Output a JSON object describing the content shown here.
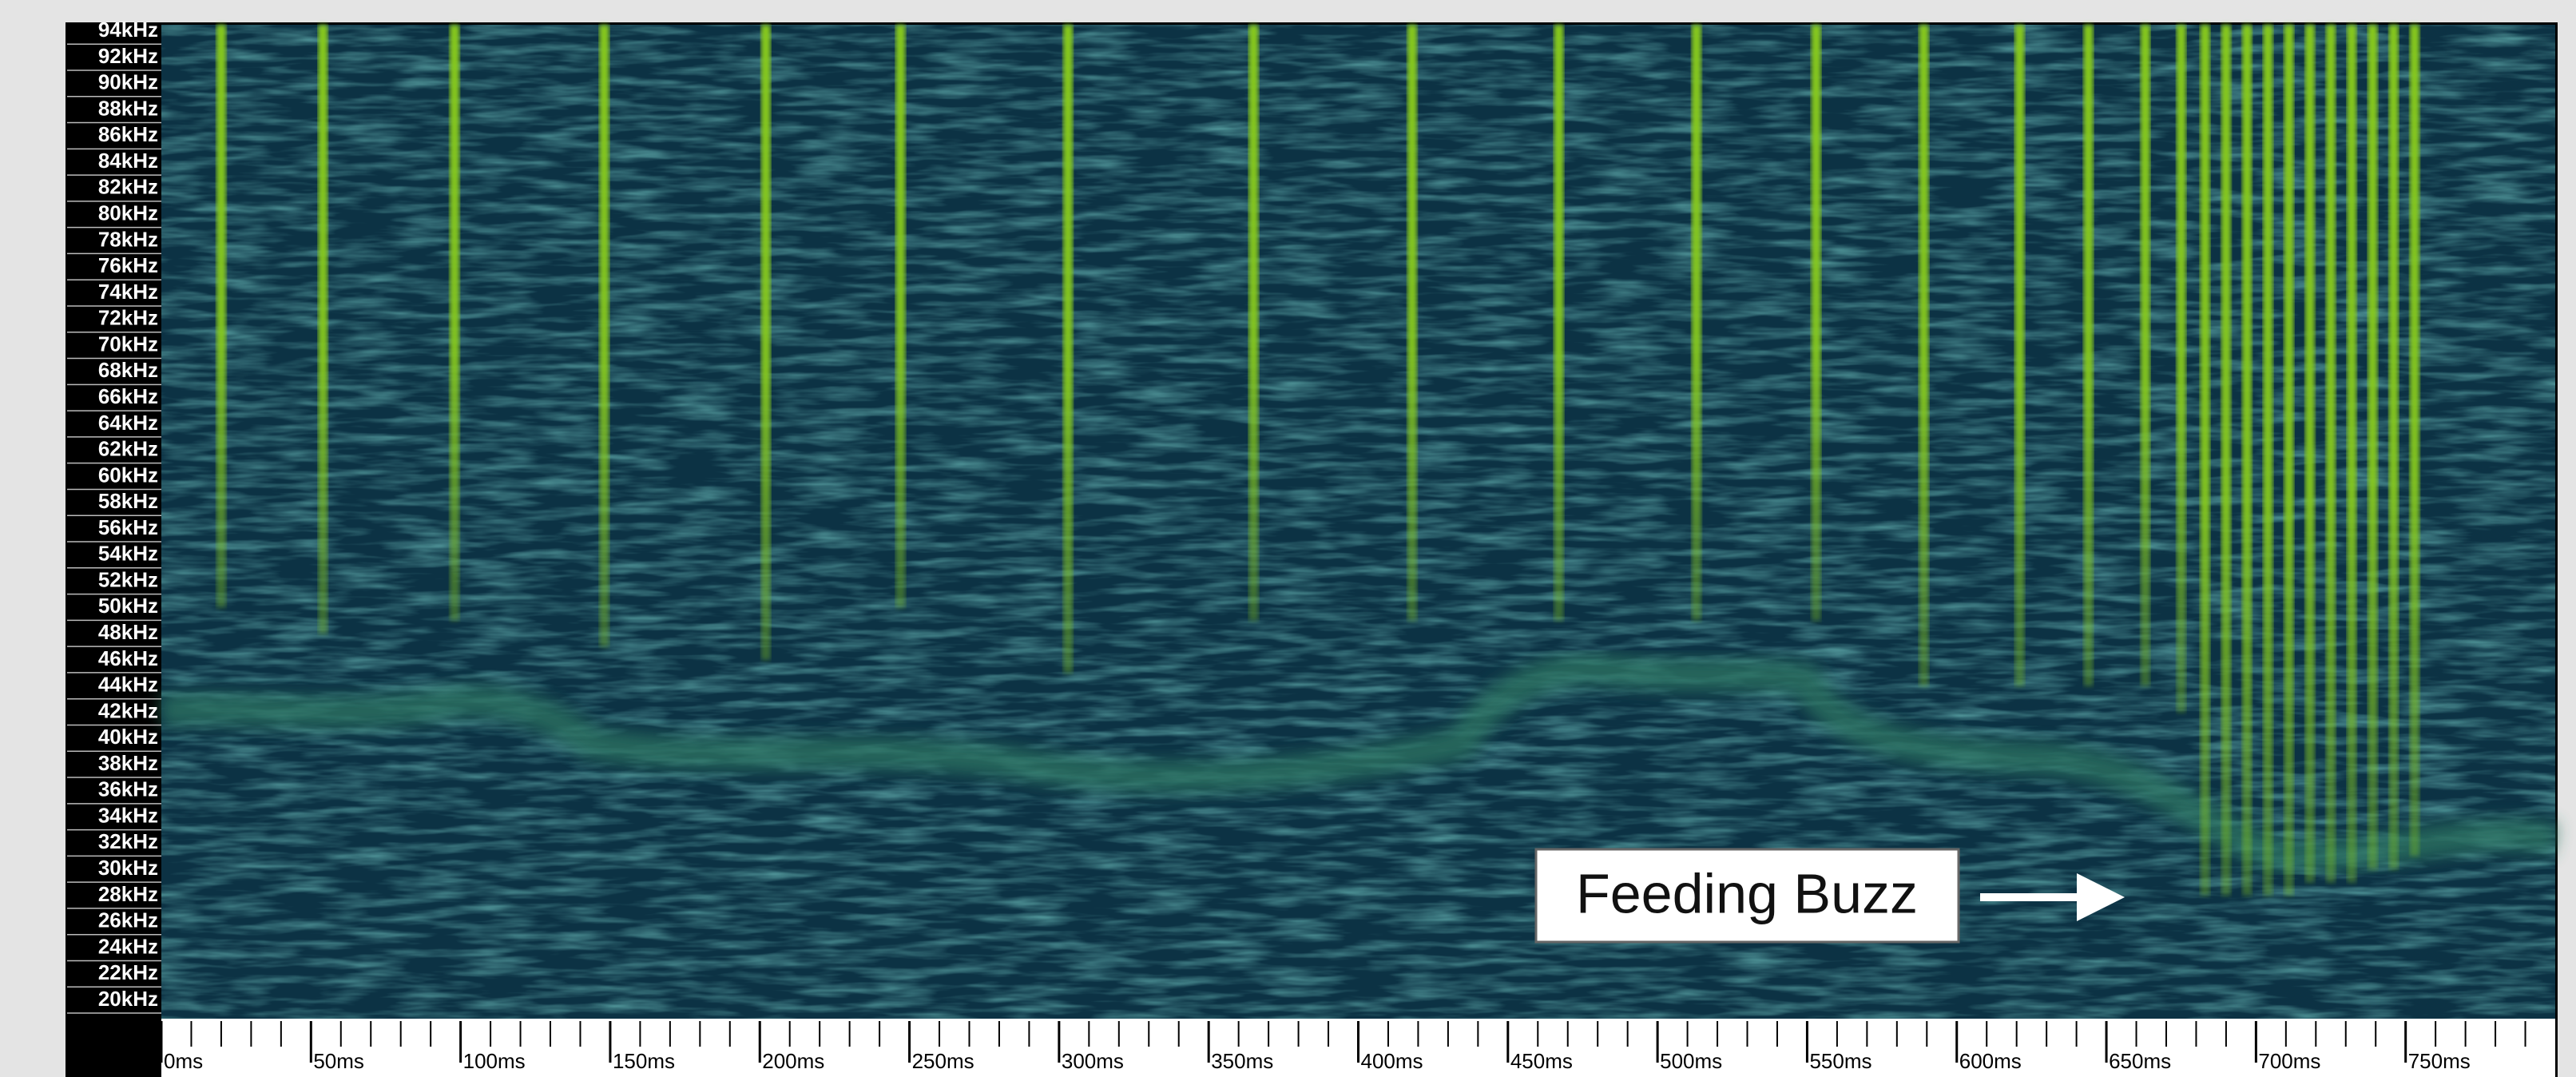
{
  "chart_data": {
    "type": "spectrogram",
    "xlim": [
      0,
      800
    ],
    "ylim": [
      18.6,
      94.5
    ],
    "xticks": [
      {
        "value": 0,
        "label": "0ms"
      },
      {
        "value": 50,
        "label": "50ms"
      },
      {
        "value": 100,
        "label": "100ms"
      },
      {
        "value": 150,
        "label": "150ms"
      },
      {
        "value": 200,
        "label": "200ms"
      },
      {
        "value": 250,
        "label": "250ms"
      },
      {
        "value": 300,
        "label": "300ms"
      },
      {
        "value": 350,
        "label": "350ms"
      },
      {
        "value": 400,
        "label": "400ms"
      },
      {
        "value": 450,
        "label": "450ms"
      },
      {
        "value": 500,
        "label": "500ms"
      },
      {
        "value": 550,
        "label": "550ms"
      },
      {
        "value": 600,
        "label": "600ms"
      },
      {
        "value": 650,
        "label": "650ms"
      },
      {
        "value": 700,
        "label": "700ms"
      },
      {
        "value": 750,
        "label": "750ms"
      }
    ],
    "yticks": [
      {
        "value": 94,
        "label": "94kHz"
      },
      {
        "value": 92,
        "label": "92kHz"
      },
      {
        "value": 90,
        "label": "90kHz"
      },
      {
        "value": 88,
        "label": "88kHz"
      },
      {
        "value": 86,
        "label": "86kHz"
      },
      {
        "value": 84,
        "label": "84kHz"
      },
      {
        "value": 82,
        "label": "82kHz"
      },
      {
        "value": 80,
        "label": "80kHz"
      },
      {
        "value": 78,
        "label": "78kHz"
      },
      {
        "value": 76,
        "label": "76kHz"
      },
      {
        "value": 74,
        "label": "74kHz"
      },
      {
        "value": 72,
        "label": "72kHz"
      },
      {
        "value": 70,
        "label": "70kHz"
      },
      {
        "value": 68,
        "label": "68kHz"
      },
      {
        "value": 66,
        "label": "66kHz"
      },
      {
        "value": 64,
        "label": "64kHz"
      },
      {
        "value": 62,
        "label": "62kHz"
      },
      {
        "value": 60,
        "label": "60kHz"
      },
      {
        "value": 58,
        "label": "58kHz"
      },
      {
        "value": 56,
        "label": "56kHz"
      },
      {
        "value": 54,
        "label": "54kHz"
      },
      {
        "value": 52,
        "label": "52kHz"
      },
      {
        "value": 50,
        "label": "50kHz"
      },
      {
        "value": 48,
        "label": "48kHz"
      },
      {
        "value": 46,
        "label": "46kHz"
      },
      {
        "value": 44,
        "label": "44kHz"
      },
      {
        "value": 42,
        "label": "42kHz"
      },
      {
        "value": 40,
        "label": "40kHz"
      },
      {
        "value": 38,
        "label": "38kHz"
      },
      {
        "value": 36,
        "label": "36kHz"
      },
      {
        "value": 34,
        "label": "34kHz"
      },
      {
        "value": 32,
        "label": "32kHz"
      },
      {
        "value": 30,
        "label": "30kHz"
      },
      {
        "value": 28,
        "label": "28kHz"
      },
      {
        "value": 26,
        "label": "26kHz"
      },
      {
        "value": 24,
        "label": "24kHz"
      },
      {
        "value": 22,
        "label": "22kHz"
      },
      {
        "value": 20,
        "label": "20kHz"
      }
    ],
    "x": [
      20,
      54,
      98,
      148,
      202,
      247,
      303,
      365,
      418,
      467,
      513,
      553,
      589,
      621,
      644,
      663,
      675,
      683,
      690,
      697,
      704,
      711,
      718,
      725,
      732,
      739,
      746,
      753
    ],
    "values": [
      50,
      48,
      49,
      47,
      46,
      50,
      45,
      49,
      49,
      49,
      49,
      49,
      44,
      44,
      44,
      44,
      42,
      28,
      28,
      28,
      28,
      28,
      29,
      29,
      29,
      30,
      30,
      31
    ],
    "color": "#86c81e",
    "annotation": "Feeding Buzz"
  }
}
